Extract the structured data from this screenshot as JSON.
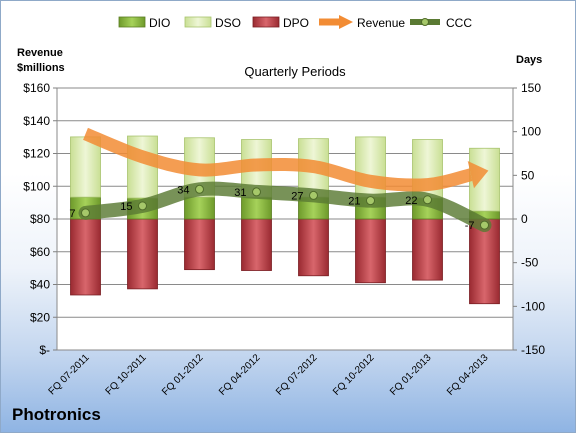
{
  "company": "Photronics",
  "chart_data": {
    "type": "bar",
    "title": "Quarterly Periods",
    "ylabel_left": [
      "Revenue",
      "$millions"
    ],
    "ylabel_right": "Days",
    "categories": [
      "FQ 07-2011",
      "FQ 10-2011",
      "FQ 01-2012",
      "FQ 04-2012",
      "FQ 07-2012",
      "FQ 10-2012",
      "FQ 01-2013",
      "FQ 04-2013"
    ],
    "y_left": {
      "min": 0,
      "max": 160,
      "step": 20,
      "ticks": [
        "$-",
        "$20",
        "$40",
        "$60",
        "$80",
        "$100",
        "$120",
        "$140",
        "$160"
      ]
    },
    "y_right": {
      "min": -150,
      "max": 150,
      "step": 50,
      "ticks": [
        "-150",
        "-100",
        "-50",
        "0",
        "50",
        "100",
        "150"
      ]
    },
    "legend": [
      "DIO",
      "DSO",
      "DPO",
      "Revenue",
      "CCC"
    ],
    "legend_position": "top",
    "series": [
      {
        "name": "DIO",
        "type": "stacked-bar",
        "axis": "right",
        "values": [
          25,
          24,
          25,
          25,
          25,
          25,
          24,
          9
        ]
      },
      {
        "name": "DSO",
        "type": "stacked-bar",
        "axis": "right",
        "values": [
          69,
          71,
          68,
          66,
          67,
          69,
          67,
          72
        ]
      },
      {
        "name": "DPO",
        "type": "negative-bar",
        "axis": "right",
        "values": [
          -87,
          -80,
          -58,
          -59,
          -65,
          -73,
          -70,
          -97
        ]
      },
      {
        "name": "Revenue",
        "type": "line",
        "axis": "left",
        "values": [
          132,
          118,
          110,
          113,
          112,
          103,
          101,
          109
        ]
      },
      {
        "name": "CCC",
        "type": "line",
        "axis": "right",
        "values": [
          7,
          15,
          34,
          31,
          27,
          21,
          22,
          -7
        ]
      }
    ],
    "ccc_labels": [
      "7",
      "15",
      "34",
      "31",
      "27",
      "21",
      "22",
      "-7"
    ],
    "grid": true,
    "colors": {
      "DIO": "#8fc13f",
      "DSO": "#dcebb5",
      "DPO": "#c0434a",
      "Revenue": "#f59a4a",
      "CCC": "#4f6b2a"
    }
  }
}
